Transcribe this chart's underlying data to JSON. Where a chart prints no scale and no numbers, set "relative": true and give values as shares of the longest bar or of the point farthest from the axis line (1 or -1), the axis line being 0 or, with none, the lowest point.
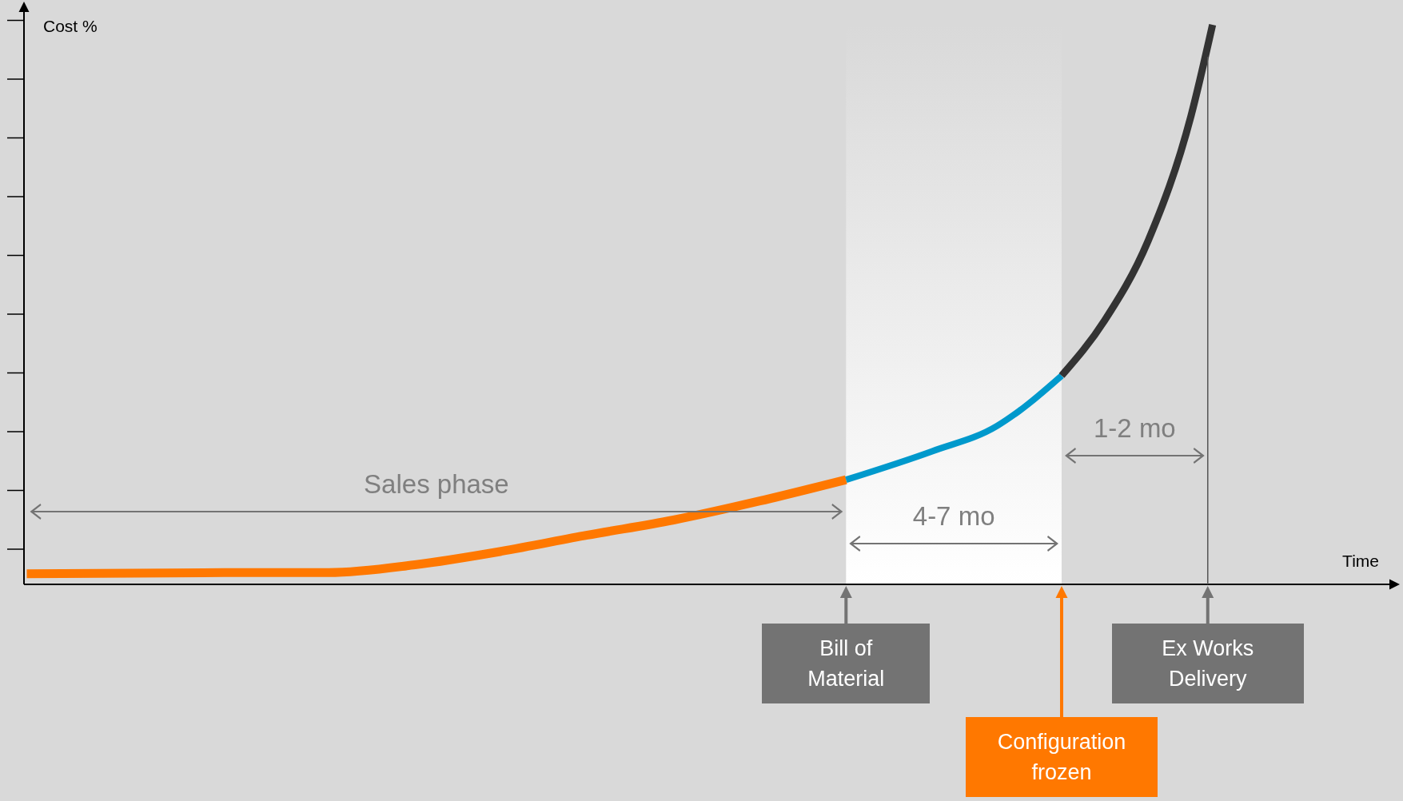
{
  "chart_data": {
    "type": "line",
    "relative": true,
    "xlabel": "Time",
    "ylabel": "Cost %",
    "categories": [
      null,
      null,
      null,
      null,
      null,
      null,
      null,
      null,
      null,
      null,
      null,
      null,
      null,
      null,
      null,
      null,
      null,
      null,
      null,
      null,
      null,
      null,
      null,
      null,
      null,
      null,
      null,
      null,
      null,
      null,
      null,
      null,
      null,
      null,
      null,
      null,
      null,
      null,
      null,
      null,
      null,
      null,
      null,
      null,
      null,
      null,
      null,
      null,
      null,
      null,
      null,
      null,
      null,
      null,
      null,
      null,
      null,
      null,
      null,
      null,
      null,
      null,
      null,
      null
    ],
    "series": [
      {
        "color": "#ff7800",
        "values": [
          0.019,
          null,
          null,
          null,
          null,
          null,
          null,
          null,
          null,
          null,
          0.021,
          null,
          null,
          null,
          0.021,
          null,
          null,
          null,
          0.035,
          null,
          null,
          null,
          0.059,
          null,
          null,
          null,
          0.088,
          null,
          null,
          null,
          0.115,
          null,
          null,
          null,
          0.149,
          null,
          null,
          null,
          0.187,
          null,
          null,
          null,
          null,
          null,
          null,
          null,
          null,
          null,
          null,
          null,
          null,
          null,
          null,
          null,
          null,
          null,
          null,
          null,
          null,
          null,
          null,
          null,
          null,
          null
        ]
      },
      {
        "color": "#0099cc",
        "values": [
          null,
          null,
          null,
          null,
          null,
          null,
          null,
          null,
          null,
          null,
          null,
          null,
          null,
          null,
          null,
          null,
          null,
          null,
          null,
          null,
          null,
          null,
          null,
          null,
          null,
          null,
          null,
          null,
          null,
          null,
          null,
          null,
          null,
          null,
          null,
          null,
          null,
          null,
          0.187,
          null,
          null,
          null,
          0.238,
          null,
          null,
          0.283,
          0.309,
          null,
          0.373,
          null,
          null,
          null,
          null,
          null,
          null,
          null,
          null,
          null,
          null,
          null,
          null,
          null,
          null,
          null
        ]
      },
      {
        "color": "#333333",
        "values": [
          null,
          null,
          null,
          null,
          null,
          null,
          null,
          null,
          null,
          null,
          null,
          null,
          null,
          null,
          null,
          null,
          null,
          null,
          null,
          null,
          null,
          null,
          null,
          null,
          null,
          null,
          null,
          null,
          null,
          null,
          null,
          null,
          null,
          null,
          null,
          null,
          null,
          null,
          null,
          null,
          null,
          null,
          null,
          null,
          null,
          null,
          null,
          null,
          0.373,
          null,
          0.472,
          null,
          0.613,
          null,
          0.837,
          1.0,
          null,
          null,
          null,
          null,
          null,
          null,
          null,
          null
        ]
      }
    ],
    "annotations": [
      "Sales phase",
      "4-7 mo",
      "1-2 mo",
      "Bill of Material",
      "Configuration frozen",
      "Ex Works Delivery"
    ]
  }
}
